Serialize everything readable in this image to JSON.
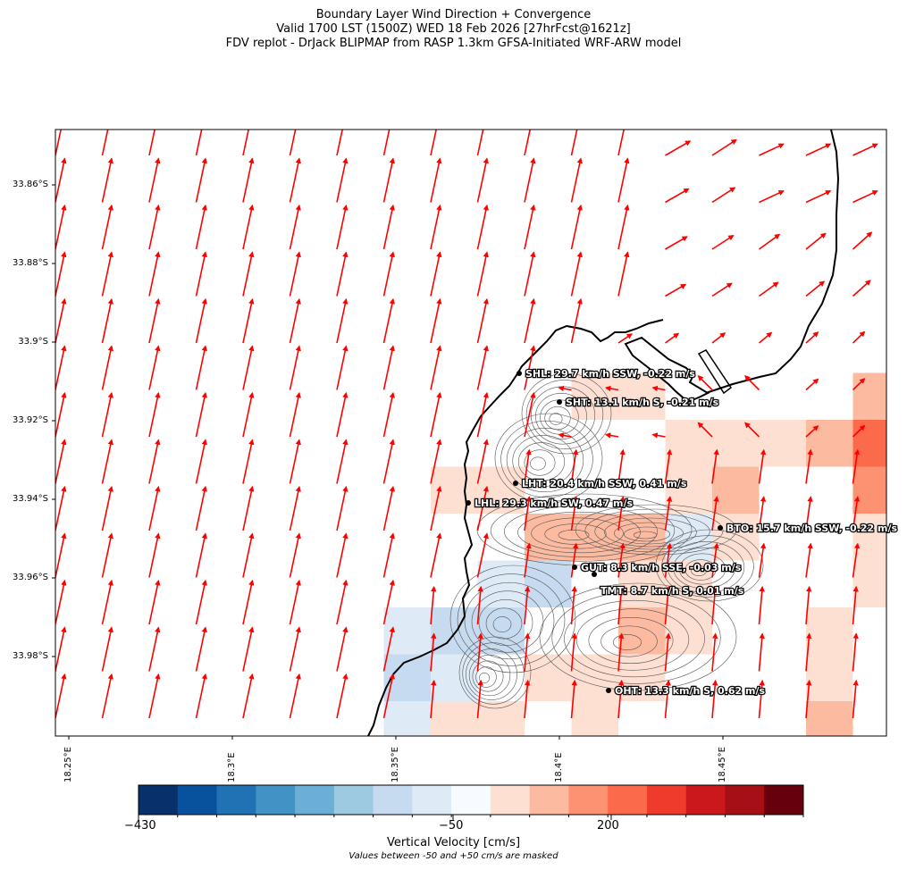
{
  "title": {
    "line1": "Boundary Layer Wind Direction + Convergence",
    "line2": "Valid 1700 LST (1500Z) WED 18 Feb 2026 [27hrFcst@1621z]",
    "line3": "FDV replot - DrJack BLIPMAP from RASP 1.3km GFSA-Initiated WRF-ARW model"
  },
  "axes": {
    "lat_labels": [
      "33.86°S",
      "33.88°S",
      "33.9°S",
      "33.92°S",
      "33.94°S",
      "33.96°S",
      "33.98°S"
    ],
    "lon_labels": [
      "18.25°E",
      "18.3°E",
      "18.35°E",
      "18.4°E",
      "18.45°E"
    ]
  },
  "stations": [
    {
      "label": "SHL: 29.7 km/h SSW, -0.22 m/s"
    },
    {
      "label": "SHT: 13.1 km/h S, -0.21 m/s"
    },
    {
      "label": "LHT: 20.4 km/h SSW, 0.41 m/s"
    },
    {
      "label": "LHL: 29.3 km/h SW, 0.47 m/s"
    },
    {
      "label": "BTO: 15.7 km/h SSW, -0.22 m/s"
    },
    {
      "label": "GUT: 8.3 km/h SSE, -0.03 m/s"
    },
    {
      "label": "TMT: 8.7 km/h S, 0.01 m/s"
    },
    {
      "label": "OHT: 13.3 km/h S, 0.62 m/s"
    }
  ],
  "colorbar": {
    "title": "Vertical Velocity [cm/s]",
    "note": "Values between -50 and +50 cm/s are masked",
    "tick_labels": [
      "−430",
      "−50",
      "200"
    ],
    "colors": [
      "#08306b",
      "#08519c",
      "#2171b5",
      "#4292c6",
      "#6baed6",
      "#9ecae1",
      "#c6dbef",
      "#deebf7",
      "#f7fbff",
      "#fee0d2",
      "#fcbba1",
      "#fc9272",
      "#fb6a4a",
      "#ef3b2c",
      "#cb181d",
      "#a50f15",
      "#67000d"
    ]
  },
  "colors": {
    "arrow": "#ff0000",
    "coast": "#000000",
    "contour": "#555555"
  }
}
